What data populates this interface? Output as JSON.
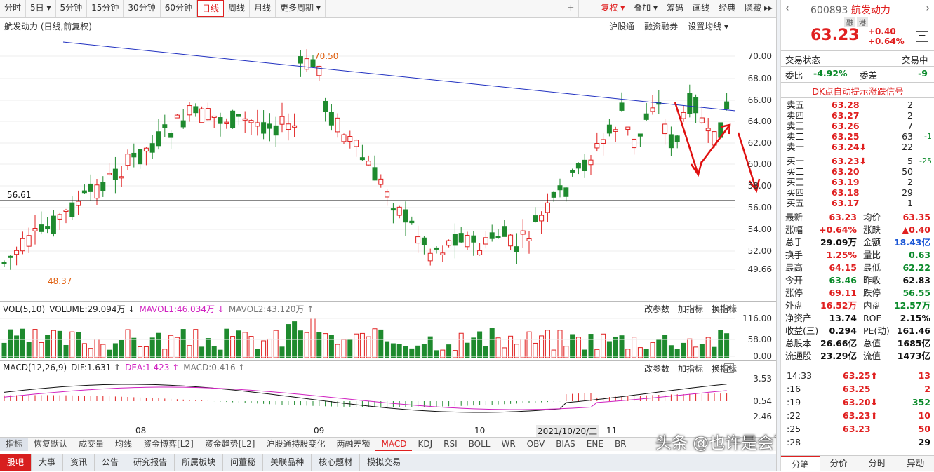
{
  "toolbar": {
    "periods": [
      "分时",
      "5日 ▾",
      "5分钟",
      "15分钟",
      "30分钟",
      "60分钟",
      "日线",
      "周线",
      "月线",
      "更多周期 ▾"
    ],
    "tools": [
      "+",
      "—",
      "复权 ▾",
      "叠加 ▾",
      "筹码",
      "画线",
      "经典",
      "隐藏 ▸▸"
    ]
  },
  "chart": {
    "title": "航发动力 (日线,前复权)",
    "links": [
      "沪股通",
      "融资融券",
      "设置均线 ▾"
    ],
    "price_axis": [
      "70.00",
      "68.00",
      "66.00",
      "64.00",
      "62.00",
      "60.00",
      "58.00",
      "56.00",
      "54.00",
      "52.00",
      "49.66"
    ],
    "hline_label": "56.61",
    "high_label": "70.50",
    "low_label": "48.37",
    "x_labels": [
      "08",
      "09",
      "10",
      "2021/10/20/三",
      "11"
    ],
    "vol_axis": [
      "116.00",
      "58.00",
      "0.00"
    ],
    "macd_axis": [
      "3.53",
      "0.54",
      "-2.46"
    ]
  },
  "volume_panel": {
    "label": "VOL(5,10)",
    "volume": "VOLUME:29.094万 ↓",
    "mavol1": "MAVOL1:46.034万 ↓",
    "mavol2": "MAVOL2:43.120万 ↑",
    "buttons": [
      "改参数",
      "加指标",
      "换指标"
    ]
  },
  "macd_panel": {
    "label": "MACD(12,26,9)",
    "dif": "DIF:1.631 ↑",
    "dea": "DEA:1.423 ↑",
    "macd": "MACD:0.416 ↑",
    "buttons": [
      "改参数",
      "加指标",
      "换指标"
    ]
  },
  "indicator_tabs": [
    "指标",
    "恢复默认",
    "成交量",
    "均线",
    "资金博弈[L2]",
    "资金趋势[L2]",
    "沪股通持股变化",
    "两融差额",
    "MACD",
    "KDJ",
    "RSI",
    "BOLL",
    "WR",
    "OBV",
    "BIAS",
    "ENE",
    "BR"
  ],
  "bottom_tabs": [
    "股吧",
    "大事",
    "资讯",
    "公告",
    "研究报告",
    "所属板块",
    "问董秘",
    "关联品种",
    "核心题材",
    "模拟交易"
  ],
  "watermark": "头条 @也许是会飞的小牛",
  "quote": {
    "code": "600893",
    "name": "航发动力",
    "badges": [
      "融",
      "港"
    ],
    "price": "63.23",
    "change": "+0.40",
    "change_pct": "+0.64%",
    "trade_status_label": "交易状态",
    "trade_status": "交易中",
    "weibi_label": "委比",
    "weibi": "-4.92%",
    "weicha_label": "委差",
    "weicha": "-9",
    "dk_signal": "DK点自动提示涨跌信号",
    "asks": [
      {
        "name": "卖五",
        "price": "63.28",
        "qty": "2",
        "delta": ""
      },
      {
        "name": "卖四",
        "price": "63.27",
        "qty": "2",
        "delta": ""
      },
      {
        "name": "卖三",
        "price": "63.26",
        "qty": "7",
        "delta": ""
      },
      {
        "name": "卖二",
        "price": "63.25",
        "qty": "63",
        "delta": "-1"
      },
      {
        "name": "卖一",
        "price": "63.24⬇",
        "qty": "22",
        "delta": ""
      }
    ],
    "bids": [
      {
        "name": "买一",
        "price": "63.23⬇",
        "qty": "5",
        "delta": "-25"
      },
      {
        "name": "买二",
        "price": "63.20",
        "qty": "50",
        "delta": ""
      },
      {
        "name": "买三",
        "price": "63.19",
        "qty": "2",
        "delta": ""
      },
      {
        "name": "买四",
        "price": "63.18",
        "qty": "29",
        "delta": ""
      },
      {
        "name": "买五",
        "price": "63.17",
        "qty": "1",
        "delta": ""
      }
    ],
    "stats": [
      {
        "a": "最新",
        "b": "63.23",
        "c": "均价",
        "d": "63.35"
      },
      {
        "a": "涨幅",
        "b": "+0.64%",
        "c": "涨跌",
        "d": "▲0.40"
      },
      {
        "a": "总手",
        "b": "29.09万",
        "c": "金额",
        "d": "18.43亿"
      },
      {
        "a": "换手",
        "b": "1.25%",
        "c": "量比",
        "d": "0.63"
      },
      {
        "a": "最高",
        "b": "64.15",
        "c": "最低",
        "d": "62.22"
      },
      {
        "a": "今开",
        "b": "63.46",
        "c": "昨收",
        "d": "62.83"
      },
      {
        "a": "涨停",
        "b": "69.11",
        "c": "跌停",
        "d": "56.55"
      },
      {
        "a": "外盘",
        "b": "16.52万",
        "c": "内盘",
        "d": "12.57万"
      },
      {
        "a": "净资产",
        "b": "13.74",
        "c": "ROE",
        "d": "2.15%"
      },
      {
        "a": "收益(三)",
        "b": "0.294",
        "c": "PE(动)",
        "d": "161.46"
      },
      {
        "a": "总股本",
        "b": "26.66亿",
        "c": "总值",
        "d": "1685亿"
      },
      {
        "a": "流通股",
        "b": "23.29亿",
        "c": "流值",
        "d": "1473亿"
      }
    ],
    "ticks": [
      {
        "time": "14:33",
        "price": "63.25⬆",
        "qty": "13"
      },
      {
        "time": ":16",
        "price": "63.25",
        "qty": "2"
      },
      {
        "time": ":19",
        "price": "63.20⬇",
        "qty": "352"
      },
      {
        "time": ":22",
        "price": "63.23⬆",
        "qty": "10"
      },
      {
        "time": ":25",
        "price": "63.23",
        "qty": "50"
      },
      {
        "time": ":28",
        "price": "",
        "qty": "29"
      }
    ],
    "tabs": [
      "分笔",
      "分价",
      "分时",
      "异动"
    ]
  }
}
